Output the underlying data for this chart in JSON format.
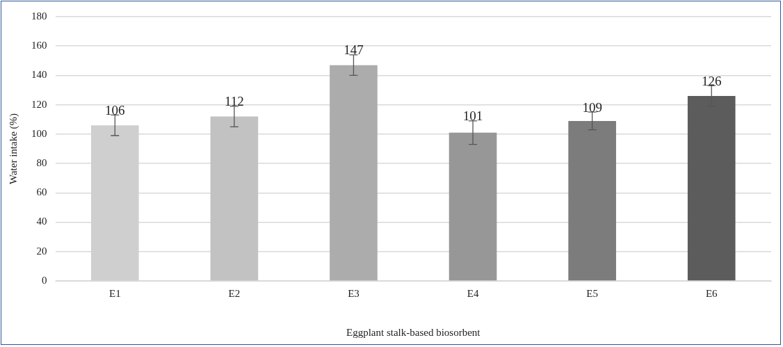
{
  "chart_data": {
    "type": "bar",
    "xlabel": "Eggplant stalk-based biosorbent",
    "ylabel": "Water intake (%)",
    "categories": [
      "E1",
      "E2",
      "E3",
      "E4",
      "E5",
      "E6"
    ],
    "values": [
      106,
      112,
      147,
      101,
      109,
      126
    ],
    "errors": [
      7,
      7,
      7,
      8,
      6,
      7
    ],
    "colors": [
      "#cfcfcf",
      "#c2c2c2",
      "#acacac",
      "#979797",
      "#7c7c7c",
      "#5c5c5c"
    ],
    "ylim": [
      0,
      180
    ],
    "yticks": [
      0,
      20,
      40,
      60,
      80,
      100,
      120,
      140,
      160,
      180
    ],
    "grid": "y",
    "legend": false,
    "data_labels": true
  }
}
